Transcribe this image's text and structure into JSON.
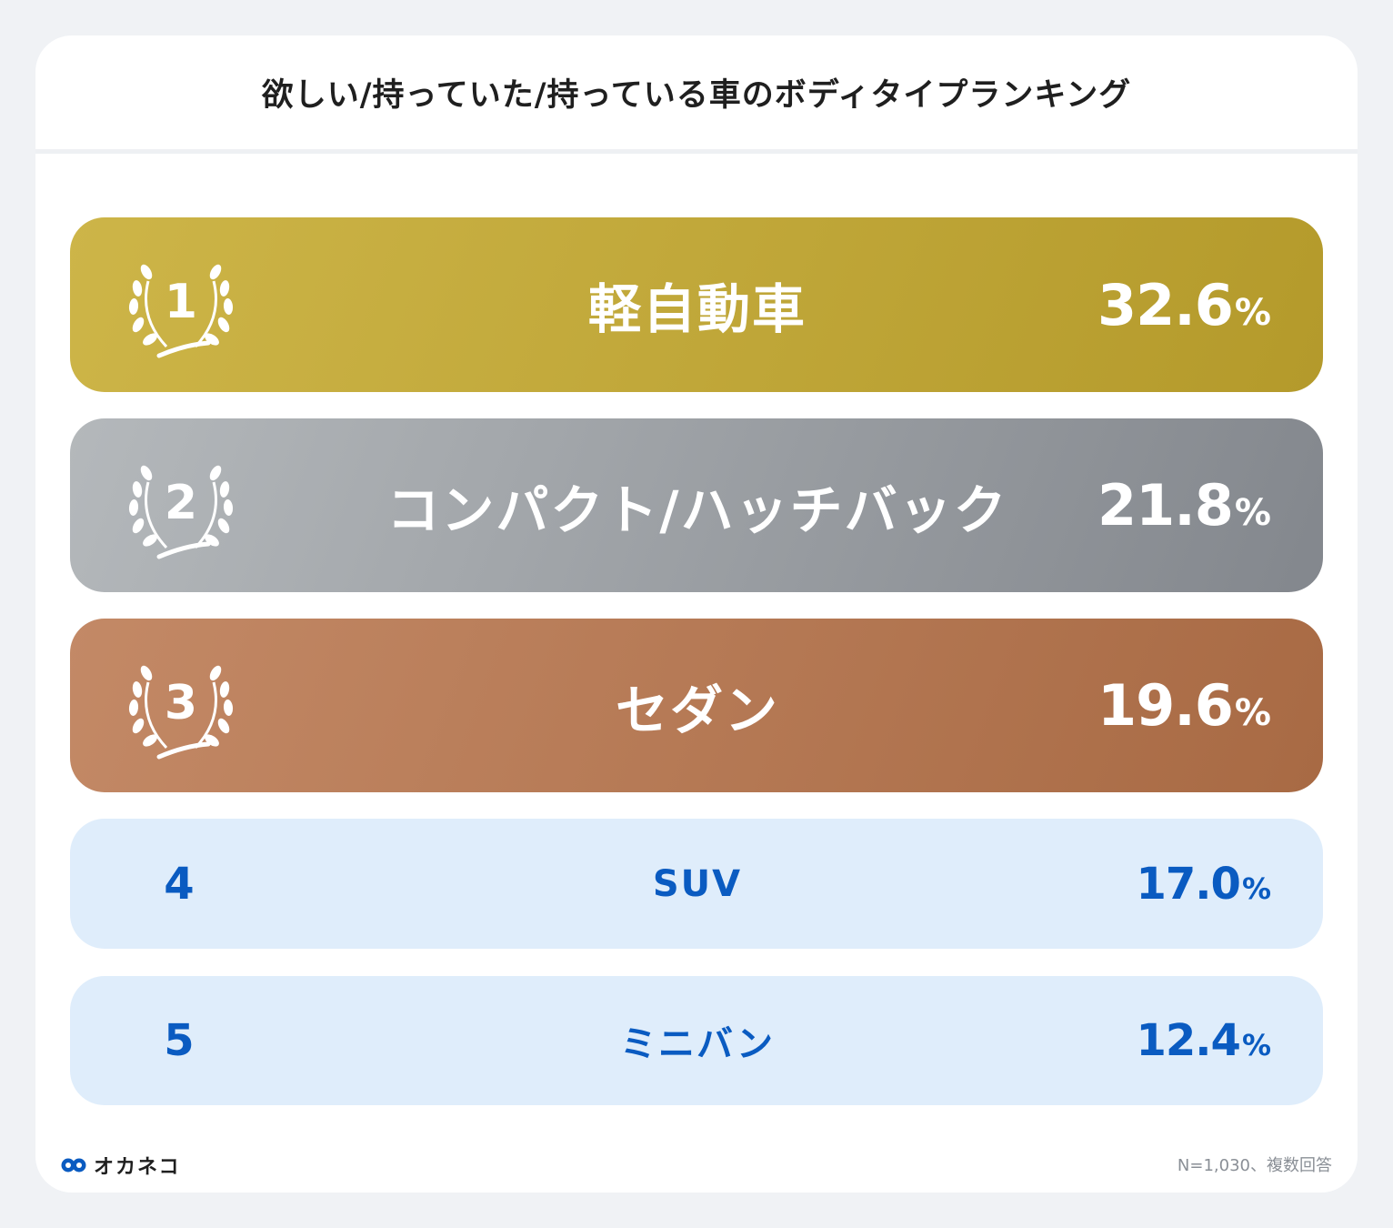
{
  "title": "欲しい/持っていた/持っている車のボディタイプランキング",
  "chart_data": {
    "type": "table",
    "title": "欲しい/持っていた/持っている車のボディタイプランキング",
    "rows": [
      {
        "rank": "1",
        "label": "軽自動車",
        "value": 32.6,
        "value_text": "32.6",
        "unit": "%",
        "medal": "gold"
      },
      {
        "rank": "2",
        "label": "コンパクト/ハッチバック",
        "value": 21.8,
        "value_text": "21.8",
        "unit": "%",
        "medal": "silver"
      },
      {
        "rank": "3",
        "label": "セダン",
        "value": 19.6,
        "value_text": "19.6",
        "unit": "%",
        "medal": "bronze"
      },
      {
        "rank": "4",
        "label": "SUV",
        "value": 17.0,
        "value_text": "17.0",
        "unit": "%",
        "medal": "none"
      },
      {
        "rank": "5",
        "label": "ミニバン",
        "value": 12.4,
        "value_text": "12.4",
        "unit": "%",
        "medal": "none"
      }
    ]
  },
  "footer": {
    "logo_text": "オカネコ",
    "note": "N=1,030、複数回答"
  },
  "colors": {
    "gold": "#c1a83a",
    "silver": "#9da1a5",
    "bronze": "#b57954",
    "plain_bg": "#dfedfb",
    "accent_blue": "#0a5bc1"
  }
}
